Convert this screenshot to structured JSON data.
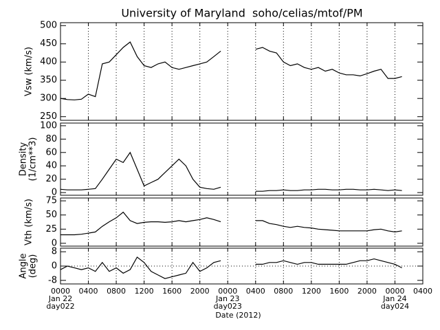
{
  "chart_data": [
    {
      "type": "line",
      "title": "University of Maryland  soho/celias/mtof/PM",
      "ylabel": [
        "Vsw (km/s)"
      ],
      "x": [
        0,
        1,
        2,
        3,
        4,
        5,
        6,
        7,
        8,
        9,
        10,
        11,
        12,
        13,
        14,
        15,
        16,
        17,
        18,
        19,
        20,
        21,
        22,
        23,
        24,
        28,
        29,
        30,
        31,
        32,
        33,
        34,
        35,
        36,
        37,
        38,
        39,
        40,
        41,
        42,
        43,
        44,
        45,
        46,
        47,
        48,
        49
      ],
      "values": [
        300,
        297,
        296,
        298,
        312,
        305,
        395,
        400,
        420,
        440,
        455,
        415,
        390,
        385,
        395,
        400,
        385,
        380,
        385,
        390,
        395,
        400,
        415,
        430,
        null,
        435,
        440,
        430,
        425,
        400,
        390,
        395,
        385,
        380,
        385,
        375,
        380,
        370,
        365,
        365,
        362,
        368,
        375,
        380,
        355,
        355,
        360
      ],
      "color": "#000000",
      "xlim": [
        0,
        52
      ],
      "ylim": [
        240,
        508
      ],
      "yticks": [
        250,
        300,
        350,
        400,
        450,
        500
      ]
    },
    {
      "type": "line",
      "ylabel": [
        "Density",
        "(1/cm**3)"
      ],
      "x": [
        0,
        1,
        2,
        3,
        4,
        5,
        6,
        7,
        8,
        9,
        10,
        11,
        12,
        13,
        14,
        15,
        16,
        17,
        18,
        19,
        20,
        21,
        22,
        23,
        24,
        28,
        29,
        30,
        31,
        32,
        33,
        34,
        35,
        36,
        37,
        38,
        39,
        40,
        41,
        42,
        43,
        44,
        45,
        46,
        47,
        48,
        49
      ],
      "values": [
        5,
        4,
        4,
        4,
        5,
        6,
        20,
        35,
        50,
        45,
        60,
        35,
        10,
        15,
        20,
        30,
        40,
        50,
        40,
        20,
        8,
        6,
        5,
        8,
        null,
        2,
        2,
        3,
        3,
        4,
        3,
        3,
        4,
        4,
        5,
        5,
        4,
        4,
        5,
        5,
        4,
        4,
        5,
        4,
        3,
        4,
        3
      ],
      "color": "#000000",
      "xlim": [
        0,
        52
      ],
      "ylim": [
        -4,
        104
      ],
      "yticks": [
        0,
        20,
        40,
        60,
        80,
        100
      ]
    },
    {
      "type": "line",
      "ylabel": [
        "Vth (km/s)"
      ],
      "x": [
        0,
        1,
        2,
        3,
        4,
        5,
        6,
        7,
        8,
        9,
        10,
        11,
        12,
        13,
        14,
        15,
        16,
        17,
        18,
        19,
        20,
        21,
        22,
        23,
        24,
        28,
        29,
        30,
        31,
        32,
        33,
        34,
        35,
        36,
        37,
        38,
        39,
        40,
        41,
        42,
        43,
        44,
        45,
        46,
        47,
        48,
        49
      ],
      "values": [
        15,
        15,
        15,
        16,
        18,
        20,
        30,
        38,
        45,
        55,
        40,
        35,
        37,
        38,
        38,
        37,
        38,
        40,
        38,
        40,
        42,
        45,
        42,
        38,
        null,
        40,
        40,
        35,
        33,
        30,
        28,
        30,
        28,
        27,
        25,
        24,
        23,
        22,
        22,
        22,
        22,
        22,
        24,
        25,
        22,
        20,
        22
      ],
      "color": "#000000",
      "xlim": [
        0,
        52
      ],
      "ylim": [
        -5,
        80
      ],
      "yticks": [
        0,
        25,
        50,
        75
      ]
    },
    {
      "type": "line",
      "ylabel": [
        "Angle",
        "(deg)"
      ],
      "x": [
        0,
        1,
        2,
        3,
        4,
        5,
        6,
        7,
        8,
        9,
        10,
        11,
        12,
        13,
        14,
        15,
        16,
        17,
        18,
        19,
        20,
        21,
        22,
        23,
        24,
        28,
        29,
        30,
        31,
        32,
        33,
        34,
        35,
        36,
        37,
        38,
        39,
        40,
        41,
        42,
        43,
        44,
        45,
        46,
        47,
        48,
        49
      ],
      "values": [
        -2,
        0,
        -1,
        -2,
        -1,
        -3,
        2,
        -3,
        -1,
        -4,
        -2,
        5,
        2,
        -3,
        -5,
        -7,
        -6,
        -5,
        -4,
        2,
        -3,
        -1,
        2,
        3,
        null,
        1,
        1,
        2,
        2,
        3,
        2,
        1,
        2,
        2,
        1,
        1,
        1,
        1,
        1,
        2,
        3,
        3,
        4,
        3,
        2,
        1,
        -1
      ],
      "color": "#000000",
      "xlim": [
        0,
        52
      ],
      "ylim": [
        -10,
        10
      ],
      "yticks": [
        -8,
        0,
        8
      ],
      "zero_line": true,
      "xlabel": "Date (2012)",
      "xticks": [
        {
          "value": 0,
          "label": "0000"
        },
        {
          "value": 4,
          "label": "0400"
        },
        {
          "value": 8,
          "label": "0800"
        },
        {
          "value": 12,
          "label": "1200"
        },
        {
          "value": 16,
          "label": "1600"
        },
        {
          "value": 20,
          "label": "2000"
        },
        {
          "value": 24,
          "label": "0000"
        },
        {
          "value": 28,
          "label": "0400"
        },
        {
          "value": 32,
          "label": "0800"
        },
        {
          "value": 36,
          "label": "1200"
        },
        {
          "value": 40,
          "label": "1600"
        },
        {
          "value": 44,
          "label": "2000"
        },
        {
          "value": 48,
          "label": "0000"
        },
        {
          "value": 52,
          "label": "0400"
        }
      ],
      "date_labels": [
        {
          "value": 0,
          "label": [
            "Jan 22",
            "day022"
          ]
        },
        {
          "value": 24,
          "label": [
            "Jan 23",
            "day023"
          ]
        },
        {
          "value": 48,
          "label": [
            "Jan 24",
            "day024"
          ]
        }
      ]
    }
  ]
}
